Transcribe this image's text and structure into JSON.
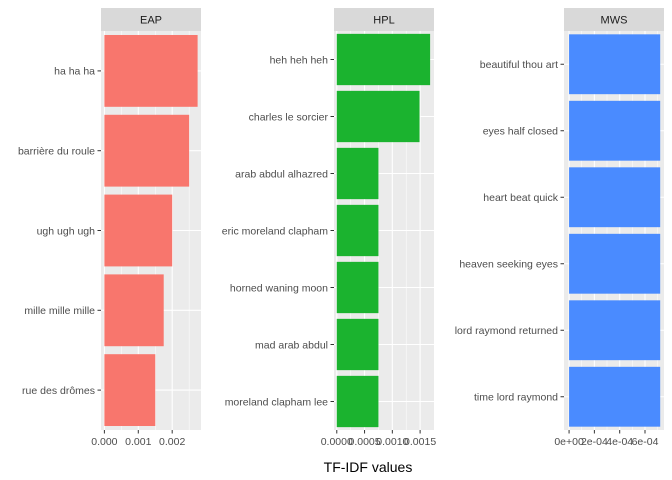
{
  "colors": {
    "panel_bg": "#ebebeb",
    "strip_bg": "#d9d9d9",
    "grid": "#ffffff",
    "tick": "#333333"
  },
  "chart_data": {
    "type": "bar",
    "orientation": "horizontal",
    "xlabel": "TF-IDF values",
    "grid": true,
    "panels": [
      {
        "name": "EAP",
        "color": "#F8766D",
        "categories": [
          "ha ha ha",
          "barrière du roule",
          "ugh ugh ugh",
          "mille mille mille",
          "rue des drômes"
        ],
        "values": [
          0.00275,
          0.0025,
          0.002,
          0.00175,
          0.0015
        ],
        "xlim": [
          -0.0001,
          0.00285
        ],
        "ticks": [
          0,
          0.001,
          0.002
        ],
        "tick_labels": [
          "0.000",
          "0.001",
          "0.002"
        ]
      },
      {
        "name": "HPL",
        "color": "#1BB32F",
        "categories": [
          "heh heh heh",
          "charles le sorcier",
          "arab abdul alhazred",
          "eric moreland clapham",
          "horned waning moon",
          "mad arab abdul",
          "moreland clapham lee"
        ],
        "values": [
          0.00168,
          0.00149,
          0.00075,
          0.00075,
          0.00075,
          0.00075,
          0.00075
        ],
        "xlim": [
          -5e-05,
          0.00175
        ],
        "ticks": [
          0,
          0.0005,
          0.001,
          0.0015
        ],
        "tick_labels": [
          "0.0000",
          "0.0005",
          "0.0010",
          "0.0015"
        ]
      },
      {
        "name": "MWS",
        "color": "#4A8BFF",
        "categories": [
          "beautiful thou art",
          "eyes half closed",
          "heart beat quick",
          "heaven seeking eyes",
          "lord raymond returned",
          "time lord raymond"
        ],
        "values": [
          0.00072,
          0.00072,
          0.00072,
          0.00072,
          0.00072,
          0.00072
        ],
        "xlim": [
          -4e-05,
          0.00075
        ],
        "ticks": [
          0,
          0.0002,
          0.0004,
          0.0006
        ],
        "tick_labels": [
          "0e+00",
          "2e-04",
          "4e-04",
          "6e-04"
        ]
      }
    ]
  }
}
